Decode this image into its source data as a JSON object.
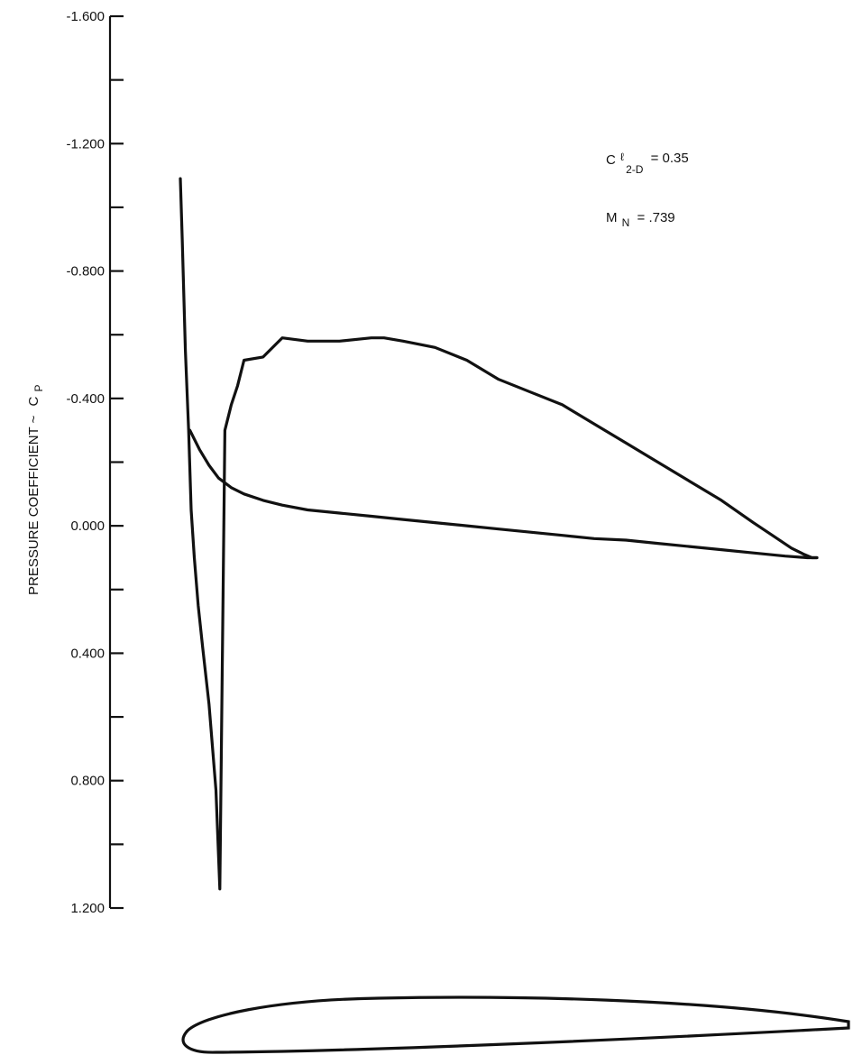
{
  "chart_data": {
    "type": "line",
    "ylabel": "PRESSURE COEFFICIENT ~",
    "ylabel_symbol": "C",
    "ylabel_symbol_sub": "P",
    "y_ticks": [
      "-1.600",
      "-1.200",
      "-0.800",
      "-0.400",
      "0.000",
      "0.400",
      "0.800",
      "1.200"
    ],
    "y_tick_values": [
      -1.6,
      -1.2,
      -0.8,
      -0.4,
      0.0,
      0.4,
      0.8,
      1.2
    ],
    "ylim": [
      -1.6,
      1.2
    ],
    "y_inverted": true,
    "xlim": [
      0,
      1
    ],
    "grid": false,
    "annotations": {
      "cl": {
        "symbol": "C",
        "sub1": "ℓ",
        "sub2": "2-D",
        "value": "= 0.35"
      },
      "mn": {
        "symbol": "M",
        "sub": "N",
        "value": "= .739"
      }
    },
    "series": [
      {
        "x": [
          0.0,
          0.003,
          0.008,
          0.013,
          0.017,
          0.022,
          0.028,
          0.035,
          0.045,
          0.056,
          0.062,
          0.07,
          0.08,
          0.09,
          0.1,
          0.13,
          0.16,
          0.2,
          0.25,
          0.3,
          0.32,
          0.35,
          0.4,
          0.45,
          0.5,
          0.55,
          0.6,
          0.65,
          0.7,
          0.75,
          0.8,
          0.85,
          0.9,
          0.93,
          0.96,
          0.98,
          0.992,
          1.0
        ],
        "y": [
          -1.09,
          -0.9,
          -0.55,
          -0.3,
          -0.05,
          0.1,
          0.25,
          0.38,
          0.56,
          0.83,
          1.14,
          -0.3,
          -0.38,
          -0.44,
          -0.52,
          -0.53,
          -0.59,
          -0.58,
          -0.58,
          -0.59,
          -0.59,
          -0.58,
          -0.56,
          -0.52,
          -0.46,
          -0.42,
          -0.38,
          -0.32,
          -0.26,
          -0.2,
          -0.14,
          -0.08,
          -0.01,
          0.03,
          0.07,
          0.09,
          0.1,
          0.1
        ]
      },
      {
        "x": [
          0.015,
          0.03,
          0.045,
          0.06,
          0.08,
          0.1,
          0.13,
          0.16,
          0.2,
          0.25,
          0.3,
          0.35,
          0.4,
          0.45,
          0.5,
          0.55,
          0.6,
          0.65,
          0.7,
          0.75,
          0.8,
          0.85,
          0.9,
          0.95,
          0.985,
          1.0
        ],
        "y": [
          -0.3,
          -0.24,
          -0.19,
          -0.15,
          -0.12,
          -0.1,
          -0.08,
          -0.065,
          -0.05,
          -0.04,
          -0.03,
          -0.02,
          -0.01,
          0.0,
          0.01,
          0.02,
          0.03,
          0.04,
          0.045,
          0.055,
          0.065,
          0.075,
          0.085,
          0.095,
          0.1,
          0.1
        ]
      }
    ]
  }
}
